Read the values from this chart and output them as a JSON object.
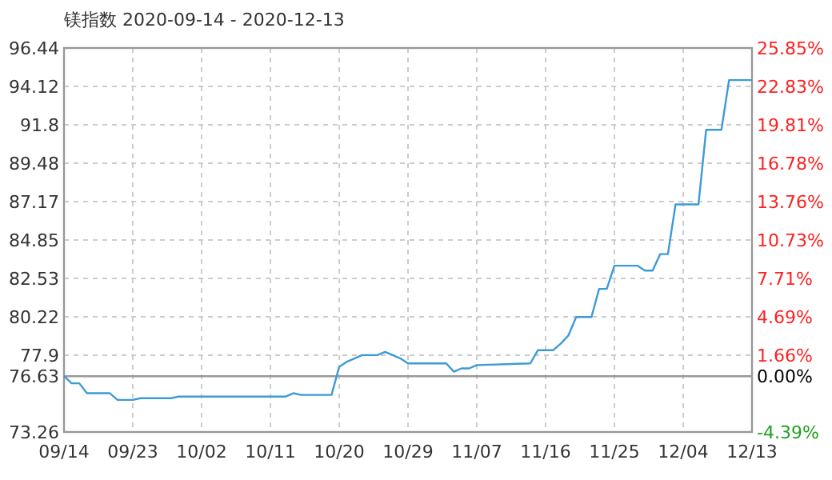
{
  "chart_data": {
    "type": "line",
    "title": "镁指数 2020-09-14 - 2020-12-13",
    "x": [
      "2020-09-14",
      "2020-09-15",
      "2020-09-16",
      "2020-09-17",
      "2020-09-20",
      "2020-09-21",
      "2020-09-23",
      "2020-09-24",
      "2020-09-28",
      "2020-09-29",
      "2020-10-13",
      "2020-10-14",
      "2020-10-15",
      "2020-10-19",
      "2020-10-20",
      "2020-10-21",
      "2020-10-22",
      "2020-10-23",
      "2020-10-25",
      "2020-10-26",
      "2020-10-27",
      "2020-10-28",
      "2020-10-29",
      "2020-11-03",
      "2020-11-04",
      "2020-11-05",
      "2020-11-06",
      "2020-11-07",
      "2020-11-14",
      "2020-11-15",
      "2020-11-17",
      "2020-11-18",
      "2020-11-19",
      "2020-11-20",
      "2020-11-22",
      "2020-11-23",
      "2020-11-24",
      "2020-11-25",
      "2020-11-28",
      "2020-11-29",
      "2020-11-30",
      "2020-12-01",
      "2020-12-02",
      "2020-12-03",
      "2020-12-06",
      "2020-12-07",
      "2020-12-09",
      "2020-12-10",
      "2020-12-13"
    ],
    "series": [
      {
        "color": "#3d9ad6",
        "values": [
          76.63,
          76.2,
          76.2,
          75.6,
          75.6,
          75.2,
          75.2,
          75.3,
          75.3,
          75.4,
          75.4,
          75.6,
          75.5,
          75.5,
          77.2,
          77.5,
          77.7,
          77.9,
          77.9,
          78.1,
          77.9,
          77.7,
          77.4,
          77.4,
          76.9,
          77.1,
          77.1,
          77.3,
          77.4,
          78.2,
          78.2,
          78.6,
          79.1,
          80.2,
          80.2,
          81.9,
          81.9,
          83.3,
          83.3,
          83.0,
          83.0,
          84.0,
          84.0,
          87.0,
          87.0,
          91.5,
          91.5,
          94.5,
          94.5
        ]
      }
    ],
    "xlim": [
      "2020-09-14",
      "2020-12-13"
    ],
    "xticks": [
      {
        "value": "2020-09-14",
        "label": "09/14"
      },
      {
        "value": "2020-09-23",
        "label": "09/23"
      },
      {
        "value": "2020-10-02",
        "label": "10/02"
      },
      {
        "value": "2020-10-11",
        "label": "10/11"
      },
      {
        "value": "2020-10-20",
        "label": "10/20"
      },
      {
        "value": "2020-10-29",
        "label": "10/29"
      },
      {
        "value": "2020-11-07",
        "label": "11/07"
      },
      {
        "value": "2020-11-16",
        "label": "11/16"
      },
      {
        "value": "2020-11-25",
        "label": "11/25"
      },
      {
        "value": "2020-12-04",
        "label": "12/04"
      },
      {
        "value": "2020-12-13",
        "label": "12/13"
      }
    ],
    "ylim": [
      73.26,
      96.44
    ],
    "yticks": [
      73.26,
      76.63,
      77.9,
      80.22,
      82.53,
      84.85,
      87.17,
      89.48,
      91.8,
      94.12,
      96.44
    ],
    "y2lim": [
      -4.39,
      25.85
    ],
    "y2ticks": [
      {
        "value": -4.39,
        "label": "-4.39%"
      },
      {
        "value": 0,
        "label": "0.00%"
      },
      {
        "value": 1.66,
        "label": "1.66%"
      },
      {
        "value": 4.69,
        "label": "4.69%"
      },
      {
        "value": 7.71,
        "label": "7.71%"
      },
      {
        "value": 10.73,
        "label": "10.73%"
      },
      {
        "value": 13.76,
        "label": "13.76%"
      },
      {
        "value": 16.78,
        "label": "16.78%"
      },
      {
        "value": 19.81,
        "label": "19.81%"
      },
      {
        "value": 22.83,
        "label": "22.83%"
      },
      {
        "value": 25.85,
        "label": "25.85%"
      }
    ],
    "ref_lines": [
      {
        "axis": "y",
        "value": 76.63,
        "color": "#999999"
      }
    ],
    "grid": true,
    "line_style": "solid",
    "marker": "none"
  }
}
